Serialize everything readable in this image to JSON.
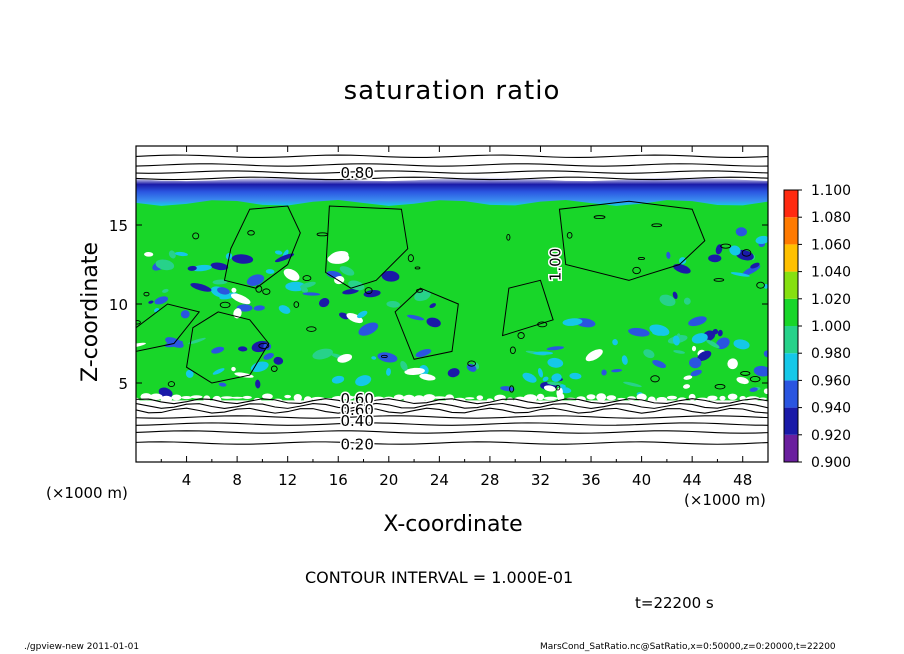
{
  "chart_data": {
    "type": "heatmap",
    "title": "saturation ratio",
    "xlabel": "X-coordinate",
    "ylabel": "Z-coordinate",
    "x_unit": "(×1000 m)",
    "y_unit": "(×1000 m)",
    "xlim": [
      0,
      50
    ],
    "ylim": [
      0,
      20
    ],
    "x_ticks": [
      4,
      8,
      12,
      16,
      20,
      24,
      28,
      32,
      36,
      40,
      44,
      48
    ],
    "y_ticks": [
      5,
      10,
      15
    ],
    "colorbar": {
      "levels": [
        "0.900",
        "0.920",
        "0.940",
        "0.960",
        "0.980",
        "1.000",
        "1.020",
        "1.040",
        "1.060",
        "1.080",
        "1.100"
      ],
      "colors": [
        "#6a1f9e",
        "#1a1aa8",
        "#2a55e0",
        "#15c8e8",
        "#27d28a",
        "#18d629",
        "#86e010",
        "#ffc000",
        "#ff7a00",
        "#ff2a10",
        "#ff8080"
      ]
    },
    "contour_labels": [
      "0.80",
      "1.00",
      "0.60",
      "0.60",
      "0.40",
      "0.20"
    ],
    "contour_interval_text": "CONTOUR INTERVAL = 1.000E-01",
    "field_summary": [
      {
        "region": "z < 4",
        "value": "0.20–0.80 (below shaded range)"
      },
      {
        "region": "4 ≤ z ≤ 16.5",
        "value": "~1.00 (saturated)"
      },
      {
        "region": "16.5 < z < 18",
        "value": "0.90–0.96"
      },
      {
        "region": "z ≥ 18",
        "value": "~0.80"
      }
    ]
  },
  "time_label": "t=22200 s",
  "footer": {
    "left": "./gpview-new   2011-01-01",
    "right": "MarsCond_SatRatio.nc@SatRatio,x=0:50000,z=0:20000,t=22200"
  }
}
